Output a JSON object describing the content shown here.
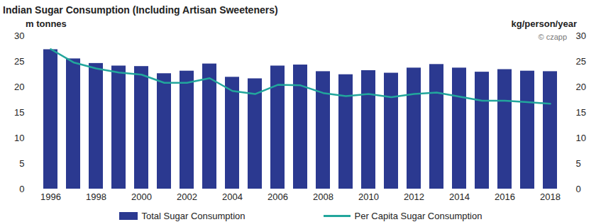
{
  "chart_data": {
    "type": "bar",
    "title": "Indian Sugar Consumption (Including Artisan Sweeteners)",
    "y_label": "m tonnes",
    "y2_label": "kg/person/year",
    "annotations": [
      "© czapp"
    ],
    "categories": [
      "1996",
      null,
      "1998",
      null,
      "2000",
      null,
      "2002",
      null,
      "2004",
      null,
      "2006",
      null,
      "2008",
      null,
      "2010",
      null,
      "2012",
      null,
      "2014",
      null,
      "2016",
      null,
      "2018"
    ],
    "series": [
      {
        "name": "Total Sugar Consumption",
        "type": "bar",
        "color": "#2b3990",
        "values": [
          27.3,
          25.5,
          24.6,
          24.1,
          24.0,
          22.6,
          23.1,
          24.5,
          21.9,
          21.6,
          24.1,
          24.3,
          23.0,
          22.4,
          23.2,
          22.7,
          23.7,
          24.4,
          23.7,
          22.9,
          23.4,
          23.1,
          23.0
        ]
      },
      {
        "name": "Per Capita Sugar Consumption",
        "type": "line",
        "axis": "y2",
        "color": "#22a69c",
        "values": [
          27.4,
          24.8,
          23.6,
          22.8,
          22.4,
          20.8,
          20.8,
          21.7,
          19.2,
          18.6,
          20.4,
          20.3,
          18.8,
          18.2,
          18.6,
          18.0,
          18.6,
          18.9,
          18.1,
          17.3,
          17.3,
          17.0,
          16.7
        ]
      }
    ],
    "ylim": [
      0,
      30
    ],
    "yticks": [
      0,
      5,
      10,
      15,
      20,
      25,
      30
    ],
    "y2lim": [
      0,
      30
    ],
    "y2ticks": [
      0,
      5,
      10,
      15,
      20,
      25,
      30
    ],
    "grid": false,
    "legend": "bottom"
  }
}
